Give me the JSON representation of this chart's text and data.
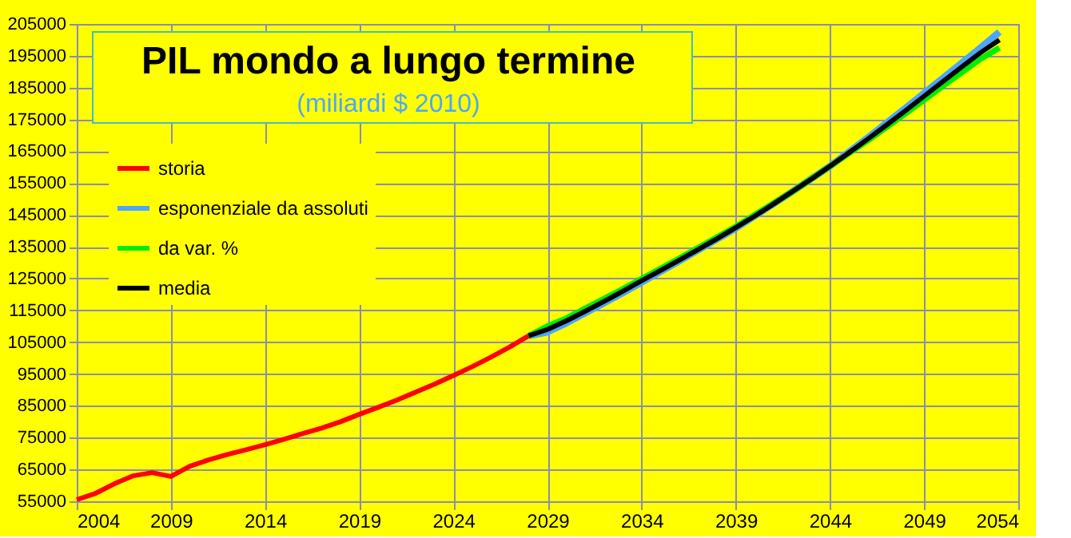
{
  "chart_data": {
    "type": "line",
    "title": "PIL mondo a lungo termine",
    "subtitle": "(miliardi $ 2010)",
    "xlim": [
      2004,
      2054
    ],
    "xticks": [
      2004,
      2009,
      2014,
      2019,
      2024,
      2029,
      2034,
      2039,
      2044,
      2049,
      2054
    ],
    "ylim": [
      55000,
      205000
    ],
    "yticks": [
      55000,
      65000,
      75000,
      85000,
      95000,
      105000,
      115000,
      125000,
      135000,
      145000,
      155000,
      165000,
      175000,
      185000,
      195000,
      205000
    ],
    "grid": true,
    "legend": "top left",
    "line_style": "solid",
    "marker": "none",
    "series": [
      {
        "name": "storia",
        "color": "#ff0000",
        "x": [
          2004,
          2005,
          2006,
          2007,
          2008,
          2009,
          2010,
          2011,
          2012,
          2013,
          2014,
          2015,
          2016,
          2017,
          2018,
          2019,
          2020,
          2021,
          2022,
          2023,
          2024,
          2025,
          2026,
          2027,
          2028
        ],
        "values": [
          55500,
          57500,
          60500,
          63000,
          64000,
          62800,
          66000,
          68000,
          69700,
          71200,
          72800,
          74500,
          76300,
          78000,
          80000,
          82300,
          84500,
          86800,
          89300,
          91800,
          94500,
          97300,
          100300,
          103500,
          107000
        ]
      },
      {
        "name": "esponenziale da assoluti",
        "color": "#4da6ff",
        "x": [
          2028,
          2029,
          2030,
          2033,
          2036,
          2039,
          2042,
          2044,
          2046,
          2048,
          2050,
          2052,
          2053
        ],
        "values": [
          107000,
          108200,
          111000,
          120500,
          130500,
          140800,
          152300,
          160300,
          169200,
          178500,
          188000,
          197500,
          202500
        ]
      },
      {
        "name": "da var. %",
        "color": "#00ee00",
        "x": [
          2028,
          2029,
          2030,
          2033,
          2036,
          2039,
          2042,
          2044,
          2046,
          2048,
          2050,
          2052,
          2053
        ],
        "values": [
          107000,
          110000,
          112500,
          121700,
          131300,
          141300,
          152300,
          160300,
          168300,
          176800,
          185500,
          194000,
          197500
        ]
      },
      {
        "name": "media",
        "color": "#000000",
        "x": [
          2028,
          2029,
          2030,
          2031,
          2032,
          2033,
          2034,
          2035,
          2036,
          2037,
          2038,
          2039,
          2040,
          2041,
          2042,
          2043,
          2044,
          2045,
          2046,
          2047,
          2048,
          2049,
          2050,
          2051,
          2052,
          2053
        ],
        "values": [
          107000,
          109000,
          111700,
          114700,
          117800,
          121000,
          124300,
          127500,
          130800,
          134100,
          137500,
          141000,
          144600,
          148400,
          152300,
          156200,
          160300,
          164500,
          168800,
          173200,
          177700,
          182300,
          186900,
          191500,
          196000,
          200000
        ]
      }
    ]
  }
}
